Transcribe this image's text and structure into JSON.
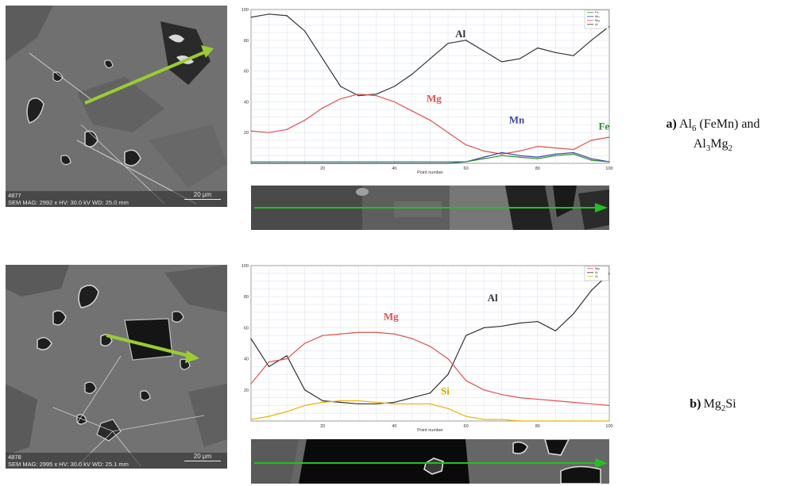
{
  "panels": [
    {
      "id": "a",
      "sem": {
        "id_label": "4877",
        "info": "SEM MAG: 2992 x HV: 30.0 kV WD: 25.0 mm",
        "scale_label": "20 μm"
      },
      "caption": {
        "letter": "a)",
        "line1": "Al6 (FeMn) and",
        "line2": "Al3Mg2"
      },
      "legend": [
        "Fe",
        "Mn",
        "Mg",
        "Al"
      ]
    },
    {
      "id": "b",
      "sem": {
        "id_label": "4878",
        "info": "SEM MAG: 2995 x HV: 30.0 kV WD: 25.1 mm",
        "scale_label": "20 μm"
      },
      "caption": {
        "letter": "b)",
        "line1": "Mg2Si"
      },
      "legend": [
        "Mg",
        "Al",
        "Si"
      ]
    }
  ],
  "chart_data": [
    {
      "type": "line",
      "xlabel": "Point number",
      "ylabel": "",
      "xlim": [
        0,
        100
      ],
      "ylim": [
        0,
        100
      ],
      "xticks": [
        "20",
        "40",
        "60",
        "80",
        "100"
      ],
      "yticks": [
        "100",
        "80",
        "60",
        "40",
        "20"
      ],
      "grid": true,
      "legend_position": "top-right",
      "x": [
        0,
        5,
        10,
        15,
        20,
        25,
        30,
        35,
        40,
        45,
        50,
        55,
        60,
        65,
        70,
        75,
        80,
        85,
        90,
        95,
        100
      ],
      "series": [
        {
          "name": "Al",
          "color": "#333333",
          "label_at": [
            57,
            82
          ],
          "values": [
            95,
            97,
            96,
            86,
            68,
            50,
            44,
            45,
            50,
            58,
            68,
            78,
            80,
            73,
            66,
            68,
            75,
            72,
            70,
            80,
            89
          ]
        },
        {
          "name": "Mg",
          "color": "#e05050",
          "label_at": [
            49,
            40
          ],
          "values": [
            21,
            20,
            22,
            28,
            36,
            42,
            45,
            44,
            40,
            34,
            28,
            20,
            12,
            8,
            6,
            8,
            11,
            10,
            9,
            15,
            17
          ]
        },
        {
          "name": "Mn",
          "color": "#3a46a8",
          "label_at": [
            72,
            26
          ],
          "values": [
            0,
            0,
            0,
            0,
            0,
            0,
            0,
            0,
            0,
            0,
            0,
            0,
            1,
            4,
            7,
            5,
            4,
            6,
            7,
            3,
            1
          ]
        },
        {
          "name": "Fe",
          "color": "#2e8b2e",
          "label_at": [
            97,
            22
          ],
          "values": [
            1,
            1,
            1,
            1,
            1,
            1,
            1,
            1,
            1,
            1,
            1,
            1,
            1,
            3,
            5,
            4,
            3,
            5,
            6,
            2,
            1
          ]
        }
      ]
    },
    {
      "type": "line",
      "xlabel": "Point number",
      "ylabel": "",
      "xlim": [
        0,
        100
      ],
      "ylim": [
        0,
        100
      ],
      "xticks": [
        "20",
        "40",
        "60",
        "80",
        "100"
      ],
      "yticks": [
        "100",
        "80",
        "60",
        "40",
        "20"
      ],
      "grid": true,
      "legend_position": "top-right",
      "x": [
        0,
        5,
        10,
        15,
        20,
        25,
        30,
        35,
        40,
        45,
        50,
        55,
        60,
        65,
        70,
        75,
        80,
        85,
        90,
        95,
        100
      ],
      "series": [
        {
          "name": "Al",
          "color": "#333333",
          "label_at": [
            66,
            77
          ],
          "values": [
            53,
            35,
            42,
            20,
            13,
            12,
            11,
            11,
            12,
            15,
            18,
            30,
            55,
            60,
            61,
            63,
            64,
            58,
            69,
            84,
            95
          ]
        },
        {
          "name": "Mg",
          "color": "#e05050",
          "label_at": [
            37,
            65
          ],
          "values": [
            24,
            38,
            40,
            50,
            55,
            56,
            57,
            57,
            56,
            53,
            48,
            40,
            26,
            20,
            17,
            15,
            14,
            13,
            12,
            11,
            10
          ]
        },
        {
          "name": "Si",
          "color": "#e8b400",
          "label_at": [
            53,
            17
          ],
          "values": [
            1,
            3,
            6,
            10,
            12,
            13,
            13,
            12,
            11,
            11,
            11,
            8,
            3,
            1,
            1,
            0,
            0,
            0,
            0,
            0,
            0
          ]
        }
      ]
    }
  ]
}
